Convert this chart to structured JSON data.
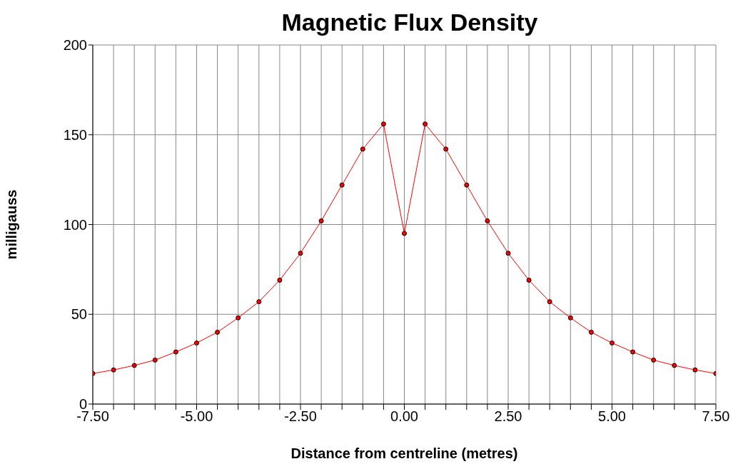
{
  "chart_data": {
    "type": "line",
    "title": "Magnetic Flux Density",
    "xlabel": "Distance from centreline (metres)",
    "ylabel": "milligauss",
    "x": [
      -7.5,
      -7,
      -6.5,
      -6,
      -5.5,
      -5,
      -4.5,
      -4,
      -3.5,
      -3,
      -2.5,
      -2,
      -1.5,
      -1,
      -0.5,
      0,
      0.5,
      1,
      1.5,
      2,
      2.5,
      3,
      3.5,
      4,
      4.5,
      5,
      5.5,
      6,
      6.5,
      7,
      7.5
    ],
    "series": [
      {
        "color": "#ff0000",
        "values": [
          17,
          19,
          21.5,
          24.5,
          29,
          34,
          40,
          48,
          57,
          69,
          84,
          102,
          122,
          142,
          156,
          95,
          156,
          142,
          122,
          102,
          84,
          69,
          57,
          48,
          40,
          34,
          29,
          24.5,
          21.5,
          19,
          17
        ]
      }
    ],
    "xlim": [
      -7.5,
      7.5
    ],
    "xticks": [
      {
        "value": -7.5,
        "label": "-7.50"
      },
      {
        "value": -7,
        "label": null
      },
      {
        "value": -6.5,
        "label": null
      },
      {
        "value": -6,
        "label": null
      },
      {
        "value": -5.5,
        "label": null
      },
      {
        "value": -5,
        "label": "-5.00"
      },
      {
        "value": -4.5,
        "label": null
      },
      {
        "value": -4,
        "label": null
      },
      {
        "value": -3.5,
        "label": null
      },
      {
        "value": -3,
        "label": null
      },
      {
        "value": -2.5,
        "label": "-2.50"
      },
      {
        "value": -2,
        "label": null
      },
      {
        "value": -1.5,
        "label": null
      },
      {
        "value": -1,
        "label": null
      },
      {
        "value": -0.5,
        "label": null
      },
      {
        "value": 0,
        "label": "0.00"
      },
      {
        "value": 0.5,
        "label": null
      },
      {
        "value": 1,
        "label": null
      },
      {
        "value": 1.5,
        "label": null
      },
      {
        "value": 2,
        "label": null
      },
      {
        "value": 2.5,
        "label": "2.50"
      },
      {
        "value": 3,
        "label": null
      },
      {
        "value": 3.5,
        "label": null
      },
      {
        "value": 4,
        "label": null
      },
      {
        "value": 4.5,
        "label": null
      },
      {
        "value": 5,
        "label": "5.00"
      },
      {
        "value": 5.5,
        "label": null
      },
      {
        "value": 6,
        "label": null
      },
      {
        "value": 6.5,
        "label": null
      },
      {
        "value": 7,
        "label": null
      },
      {
        "value": 7.5,
        "label": "7.50"
      }
    ],
    "ylim": [
      0,
      200
    ],
    "yticks": [
      0,
      50,
      100,
      150,
      200
    ],
    "grid": true,
    "marker": "circle",
    "line_style": "solid"
  }
}
